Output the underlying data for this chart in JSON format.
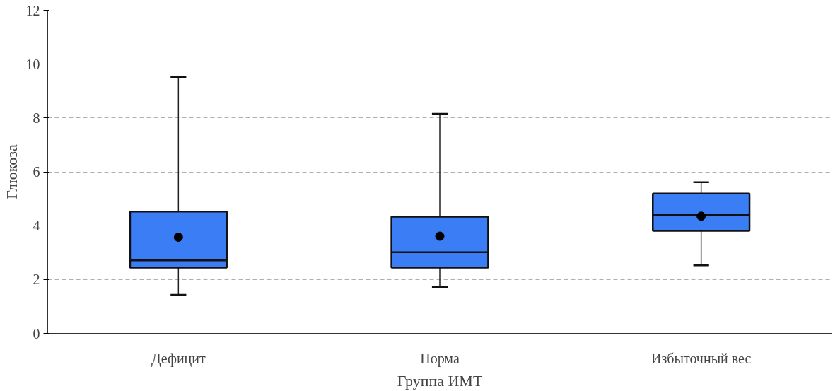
{
  "chart_data": {
    "type": "box",
    "xlabel": "Группа ИМТ",
    "ylabel": "Глюкоза",
    "categories": [
      "Дефицит",
      "Норма",
      "Избыточный вес"
    ],
    "color": "#3a7df5",
    "boxes": [
      {
        "low": 1.43,
        "q1": 2.44,
        "median": 2.71,
        "q3": 4.52,
        "high": 9.52,
        "mean": 3.57
      },
      {
        "low": 1.72,
        "q1": 2.44,
        "median": 3.01,
        "q3": 4.33,
        "high": 8.15,
        "mean": 3.61
      },
      {
        "low": 2.53,
        "q1": 3.81,
        "median": 4.39,
        "q3": 5.19,
        "high": 5.61,
        "mean": 4.35
      }
    ],
    "ylim": [
      0,
      12
    ],
    "yticks": [
      0,
      2,
      4,
      6,
      8,
      10,
      12
    ],
    "grid": "y"
  }
}
